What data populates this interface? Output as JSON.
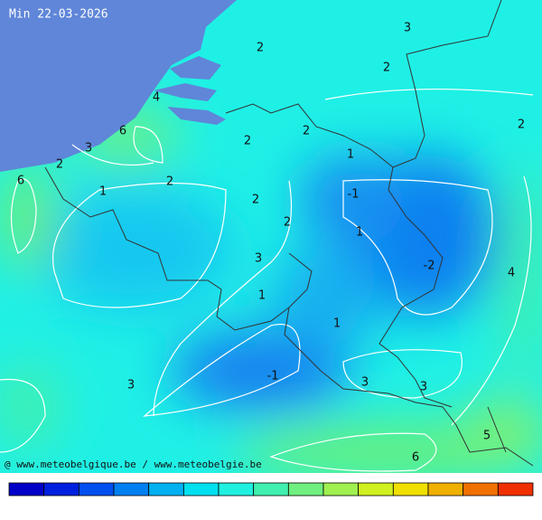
{
  "title": "Min 22-03-2026",
  "labels": [
    2,
    3,
    2,
    2,
    4,
    6,
    3,
    2,
    6,
    1,
    2,
    2,
    2,
    1,
    -1,
    2,
    2,
    1,
    -2,
    4,
    3,
    1,
    1,
    -1,
    3,
    3,
    3,
    5,
    6
  ],
  "credit": "@ www.meteobelgique.be / www.meteobelgie.be"
}
